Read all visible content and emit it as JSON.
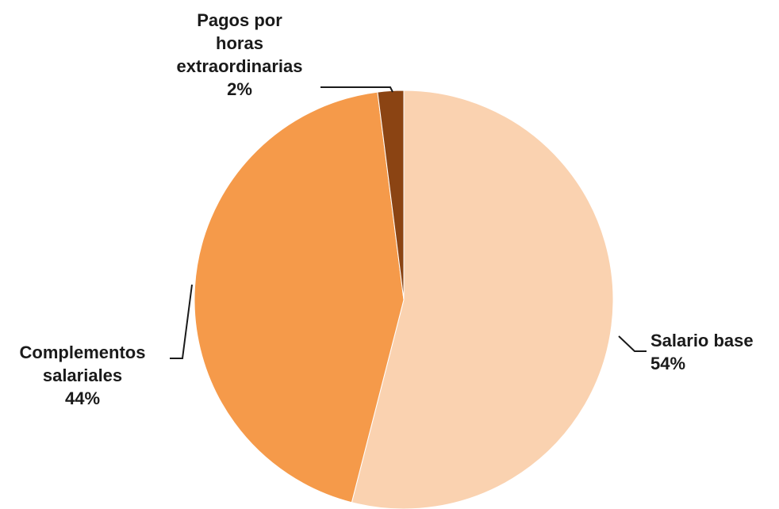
{
  "chart_data": {
    "type": "pie",
    "title": "",
    "slices": [
      {
        "name": "Salario base",
        "label_lines": [
          "Salario base"
        ],
        "pct_label": "54%",
        "value": 54,
        "color": "#fad2b0"
      },
      {
        "name": "Complementos salariales",
        "label_lines": [
          "Complementos",
          "salariales"
        ],
        "pct_label": "44%",
        "value": 44,
        "color": "#f59a4a"
      },
      {
        "name": "Pagos por horas extraordinarias",
        "label_lines": [
          "Pagos por",
          "horas",
          "extraordinarias"
        ],
        "pct_label": "2%",
        "value": 2,
        "color": "#8b4413"
      }
    ],
    "start": "12 o'clock",
    "direction": "clockwise",
    "legend": "none",
    "data_labels": "category name and percentage, with leader lines"
  }
}
